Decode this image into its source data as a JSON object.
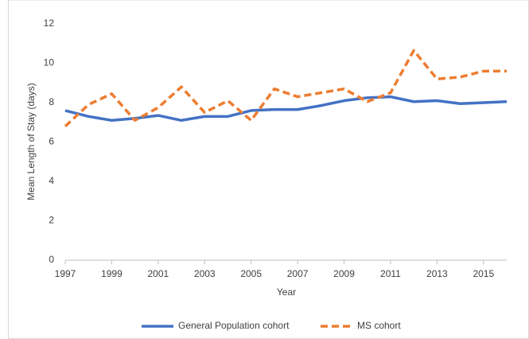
{
  "chart_data": {
    "type": "line",
    "x_label": "Year",
    "y_label": "Mean Length of Stay (days)",
    "x": [
      1997,
      1998,
      1999,
      2000,
      2001,
      2002,
      2003,
      2004,
      2005,
      2006,
      2007,
      2008,
      2009,
      2010,
      2011,
      2012,
      2013,
      2014,
      2015,
      2016
    ],
    "series": [
      {
        "name": "General Population cohort",
        "color": "#4472c4",
        "dash": false,
        "values": [
          7.6,
          7.3,
          7.1,
          7.2,
          7.35,
          7.1,
          7.3,
          7.3,
          7.6,
          7.65,
          7.65,
          7.85,
          8.1,
          8.25,
          8.3,
          8.05,
          8.1,
          7.95,
          8.0,
          8.05
        ]
      },
      {
        "name": "MS cohort",
        "color": "#ed7d31",
        "dash": true,
        "values": [
          6.8,
          7.9,
          8.45,
          7.1,
          7.75,
          8.8,
          7.5,
          8.1,
          7.1,
          8.7,
          8.3,
          8.5,
          8.7,
          8.05,
          8.5,
          10.65,
          9.2,
          9.3,
          9.6,
          9.6
        ]
      }
    ],
    "xlim": [
      1997,
      2016
    ],
    "xticks": [
      1997,
      1999,
      2001,
      2003,
      2005,
      2007,
      2009,
      2011,
      2013,
      2015
    ],
    "ylim": [
      0,
      12
    ],
    "yticks": [
      0,
      2,
      4,
      6,
      8,
      10,
      12
    ],
    "grid": false,
    "legend": "bottom"
  }
}
